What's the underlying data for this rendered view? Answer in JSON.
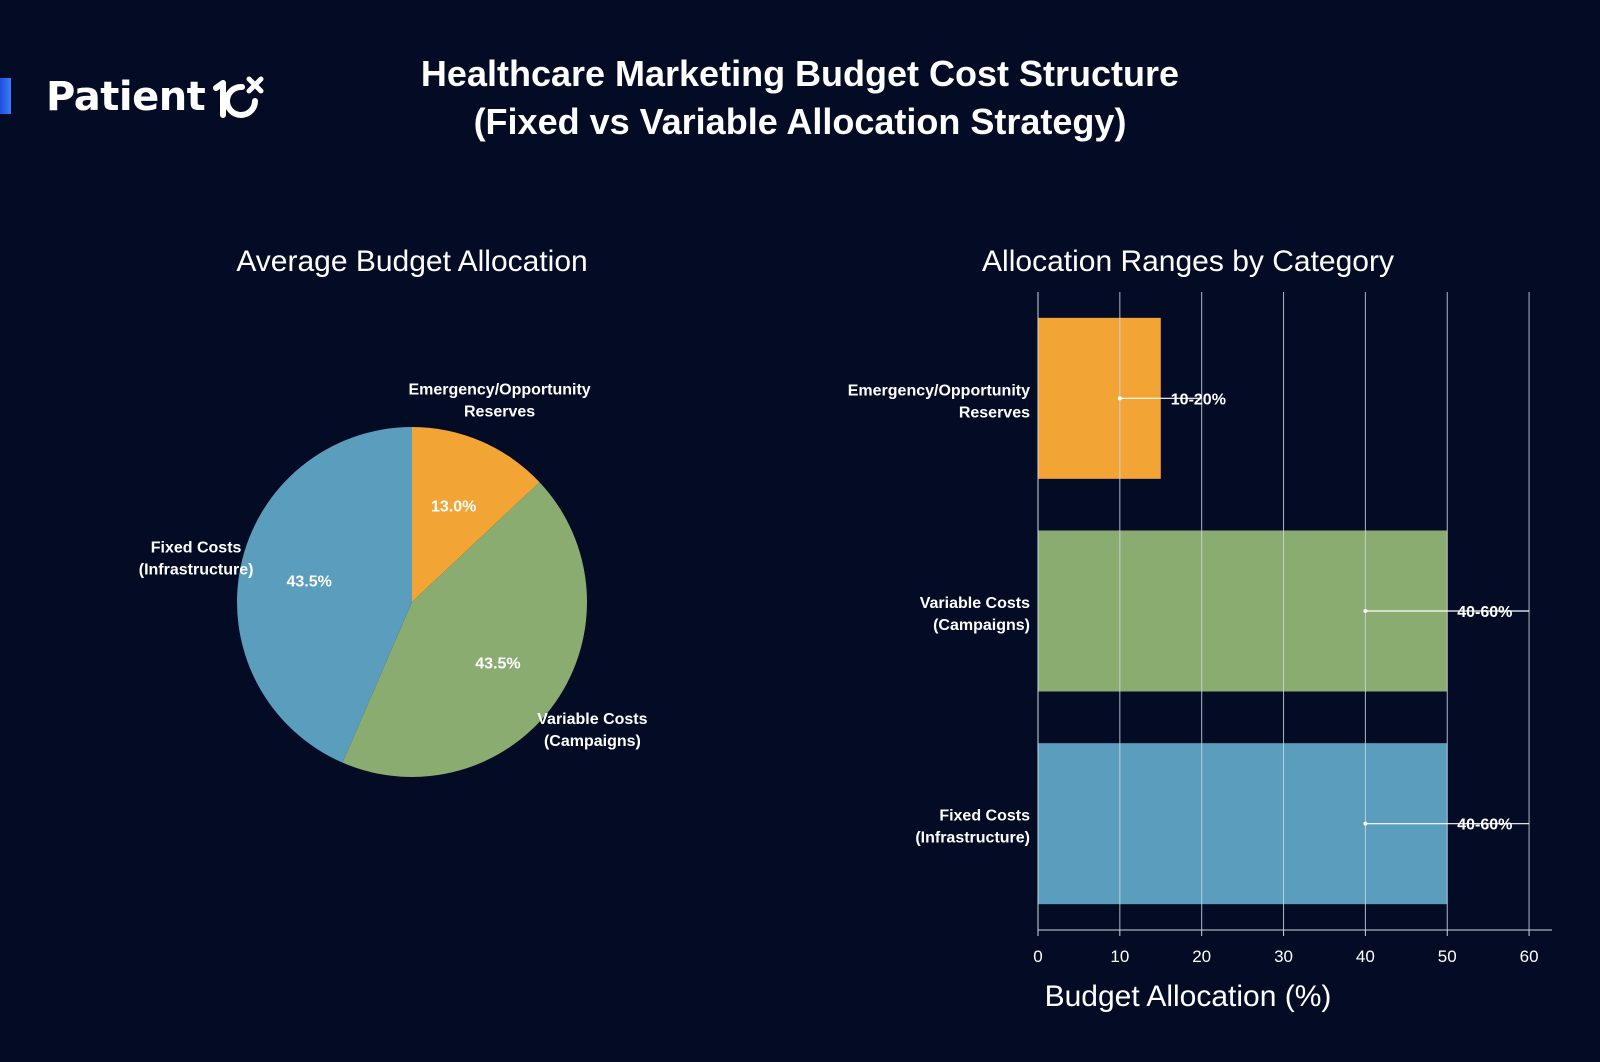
{
  "brand": {
    "name": "Patient",
    "mark": "icon-10x"
  },
  "title": {
    "line1": "Healthcare Marketing Budget Cost Structure",
    "line2": "(Fixed vs Variable Allocation Strategy)"
  },
  "colors": {
    "background": "#030c24",
    "emergency": "#f2a535",
    "variable": "#8bac70",
    "fixed": "#5a9dbd",
    "text": "#ffffff",
    "grid": "#cfd6e4"
  },
  "chart_data": [
    {
      "type": "pie",
      "title": "Average Budget Allocation",
      "slices": [
        {
          "label_lines": [
            "Emergency/Opportunity",
            "Reserves"
          ],
          "value": 13.0,
          "display": "13.0%",
          "color": "#f2a535"
        },
        {
          "label_lines": [
            "Variable Costs",
            "(Campaigns)"
          ],
          "value": 43.5,
          "display": "43.5%",
          "color": "#8bac70"
        },
        {
          "label_lines": [
            "Fixed Costs",
            "(Infrastructure)"
          ],
          "value": 43.5,
          "display": "43.5%",
          "color": "#5a9dbd"
        }
      ],
      "start_angle_deg": 90,
      "direction": "clockwise"
    },
    {
      "type": "bar",
      "orientation": "horizontal",
      "title": "Allocation Ranges by Category",
      "xlabel": "Budget Allocation (%)",
      "xlim": [
        0,
        62.8
      ],
      "xticks": [
        0,
        10,
        20,
        30,
        40,
        50,
        60
      ],
      "grid": true,
      "categories": [
        {
          "label_lines": [
            "Emergency/Opportunity",
            "Reserves"
          ],
          "value": 15,
          "range": [
            10,
            20
          ],
          "range_label": "10-20%",
          "color": "#f2a535"
        },
        {
          "label_lines": [
            "Variable Costs",
            "(Campaigns)"
          ],
          "value": 50,
          "range": [
            40,
            60
          ],
          "range_label": "40-60%",
          "color": "#8bac70"
        },
        {
          "label_lines": [
            "Fixed Costs",
            "(Infrastructure)"
          ],
          "value": 50,
          "range": [
            40,
            60
          ],
          "range_label": "40-60%",
          "color": "#5a9dbd"
        }
      ]
    }
  ]
}
